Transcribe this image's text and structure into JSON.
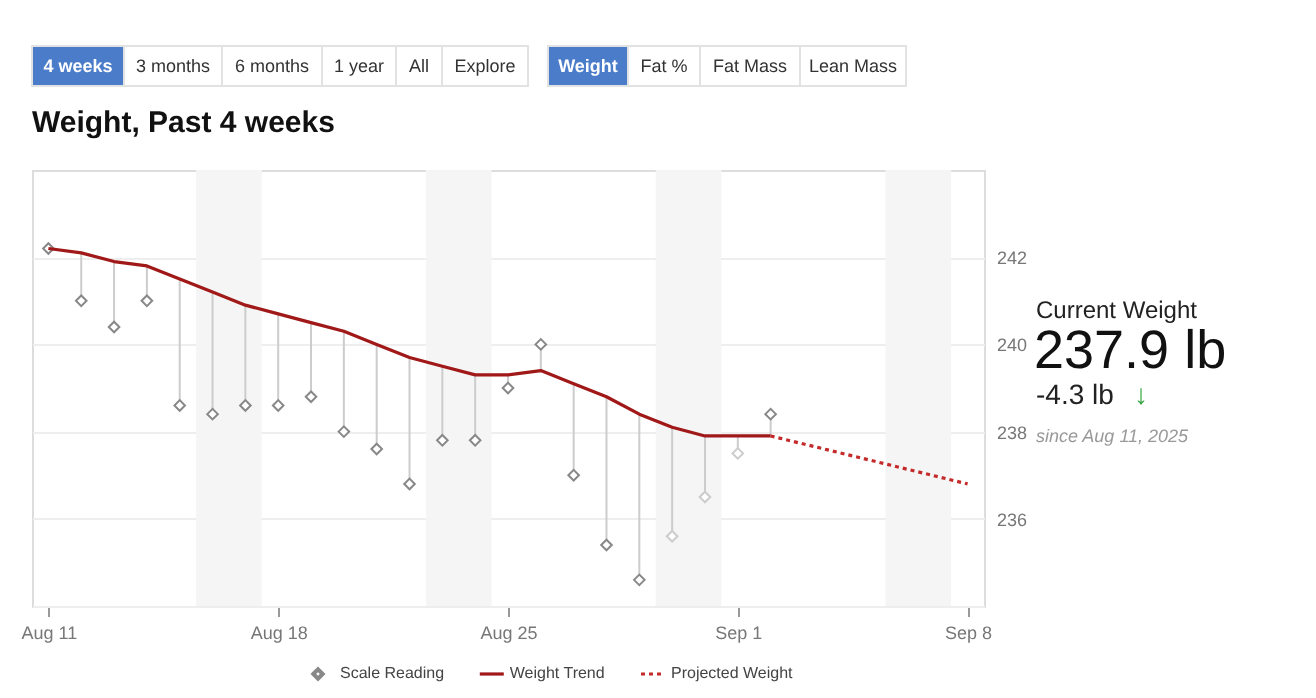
{
  "chart_data": {
    "type": "line",
    "title": "Weight, Past 4 weeks",
    "annotations": [
      "4 weeks",
      "3 months",
      "6 months",
      "1 year",
      "All",
      "Explore",
      "Weight",
      "Fat %",
      "Fat Mass",
      "Lean Mass",
      "Current Weight",
      "237.9 lb",
      "-4.3 lb",
      "↓",
      "since Aug 11, 2025"
    ],
    "x": [
      "2025-08-11",
      "2025-08-12",
      "2025-08-13",
      "2025-08-14",
      "2025-08-15",
      "2025-08-16",
      "2025-08-17",
      "2025-08-18",
      "2025-08-19",
      "2025-08-20",
      "2025-08-21",
      "2025-08-22",
      "2025-08-23",
      "2025-08-24",
      "2025-08-25",
      "2025-08-26",
      "2025-08-27",
      "2025-08-28",
      "2025-08-29",
      "2025-08-30",
      "2025-08-31",
      "2025-09-01",
      "2025-09-02"
    ],
    "series": [
      {
        "name": "Scale Reading",
        "type": "scatter",
        "marker": "diamond",
        "color": "#888888",
        "colors": [
          "#888888",
          "#888888",
          "#888888",
          "#888888",
          "#888888",
          "#888888",
          "#888888",
          "#888888",
          "#888888",
          "#888888",
          "#888888",
          "#888888",
          "#888888",
          "#888888",
          "#888888",
          "#888888",
          "#888888",
          "#888888",
          "#888888",
          "#cccccc",
          "#cccccc",
          "#cccccc",
          "#888888"
        ],
        "values": [
          242.2,
          241.0,
          240.4,
          241.0,
          238.6,
          238.4,
          238.6,
          238.6,
          238.8,
          238.0,
          237.6,
          236.8,
          237.8,
          237.8,
          239.0,
          240.0,
          237.0,
          235.4,
          234.6,
          235.6,
          236.5,
          237.5,
          238.4
        ],
        "errors": [
          null,
          [
            241.0,
            242.1
          ],
          [
            240.4,
            241.9
          ],
          [
            241.0,
            241.8
          ],
          [
            238.6,
            241.5
          ],
          [
            238.4,
            241.2
          ],
          [
            238.6,
            240.9
          ],
          [
            238.6,
            240.7
          ],
          [
            238.8,
            240.5
          ],
          [
            238.0,
            240.3
          ],
          [
            237.6,
            240.0
          ],
          [
            236.8,
            239.7
          ],
          [
            237.8,
            239.5
          ],
          [
            237.8,
            239.3
          ],
          [
            239.0,
            239.3
          ],
          [
            239.4,
            240.0
          ],
          [
            237.0,
            239.1
          ],
          [
            235.4,
            238.8
          ],
          [
            234.6,
            238.4
          ],
          [
            235.6,
            238.1
          ],
          [
            236.5,
            237.9
          ],
          [
            237.5,
            237.9
          ],
          [
            237.9,
            238.4
          ]
        ]
      },
      {
        "name": "Weight Trend",
        "line_style": "solid",
        "color": "#a01818",
        "values": [
          242.2,
          242.1,
          241.9,
          241.8,
          241.5,
          241.2,
          240.9,
          240.7,
          240.5,
          240.3,
          240.0,
          239.7,
          239.5,
          239.3,
          239.3,
          239.4,
          239.1,
          238.8,
          238.4,
          238.1,
          237.9,
          237.9,
          237.9
        ]
      },
      {
        "name": "Projected Weight",
        "line_style": "dotted",
        "color": "#c42a2a",
        "x": [
          "2025-09-02",
          "2025-09-08"
        ],
        "values": [
          237.9,
          236.8
        ]
      }
    ],
    "xlim": [
      "2025-08-10T12:00",
      "2025-09-08T12:00"
    ],
    "xticks": [
      {
        "value": "2025-08-11",
        "label": "Aug 11"
      },
      {
        "value": "2025-08-18",
        "label": "Aug 18"
      },
      {
        "value": "2025-08-25",
        "label": "Aug 25"
      },
      {
        "value": "2025-09-01",
        "label": "Sep 1"
      },
      {
        "value": "2025-09-08",
        "label": "Sep 8"
      }
    ],
    "ylim": [
      234,
      244
    ],
    "yticks": [
      236,
      238,
      240,
      242
    ],
    "bands": [
      {
        "axis": "x",
        "from": "2025-08-15T12:00",
        "to": "2025-08-17T12:00",
        "color": "#f5f5f5"
      },
      {
        "axis": "x",
        "from": "2025-08-22T12:00",
        "to": "2025-08-24T12:00",
        "color": "#f5f5f5"
      },
      {
        "axis": "x",
        "from": "2025-08-29T12:00",
        "to": "2025-08-31T12:00",
        "color": "#f5f5f5"
      },
      {
        "axis": "x",
        "from": "2025-09-05T12:00",
        "to": "2025-09-07T12:00",
        "color": "#f5f5f5"
      }
    ],
    "grid": "y",
    "legend": "bottom"
  }
}
